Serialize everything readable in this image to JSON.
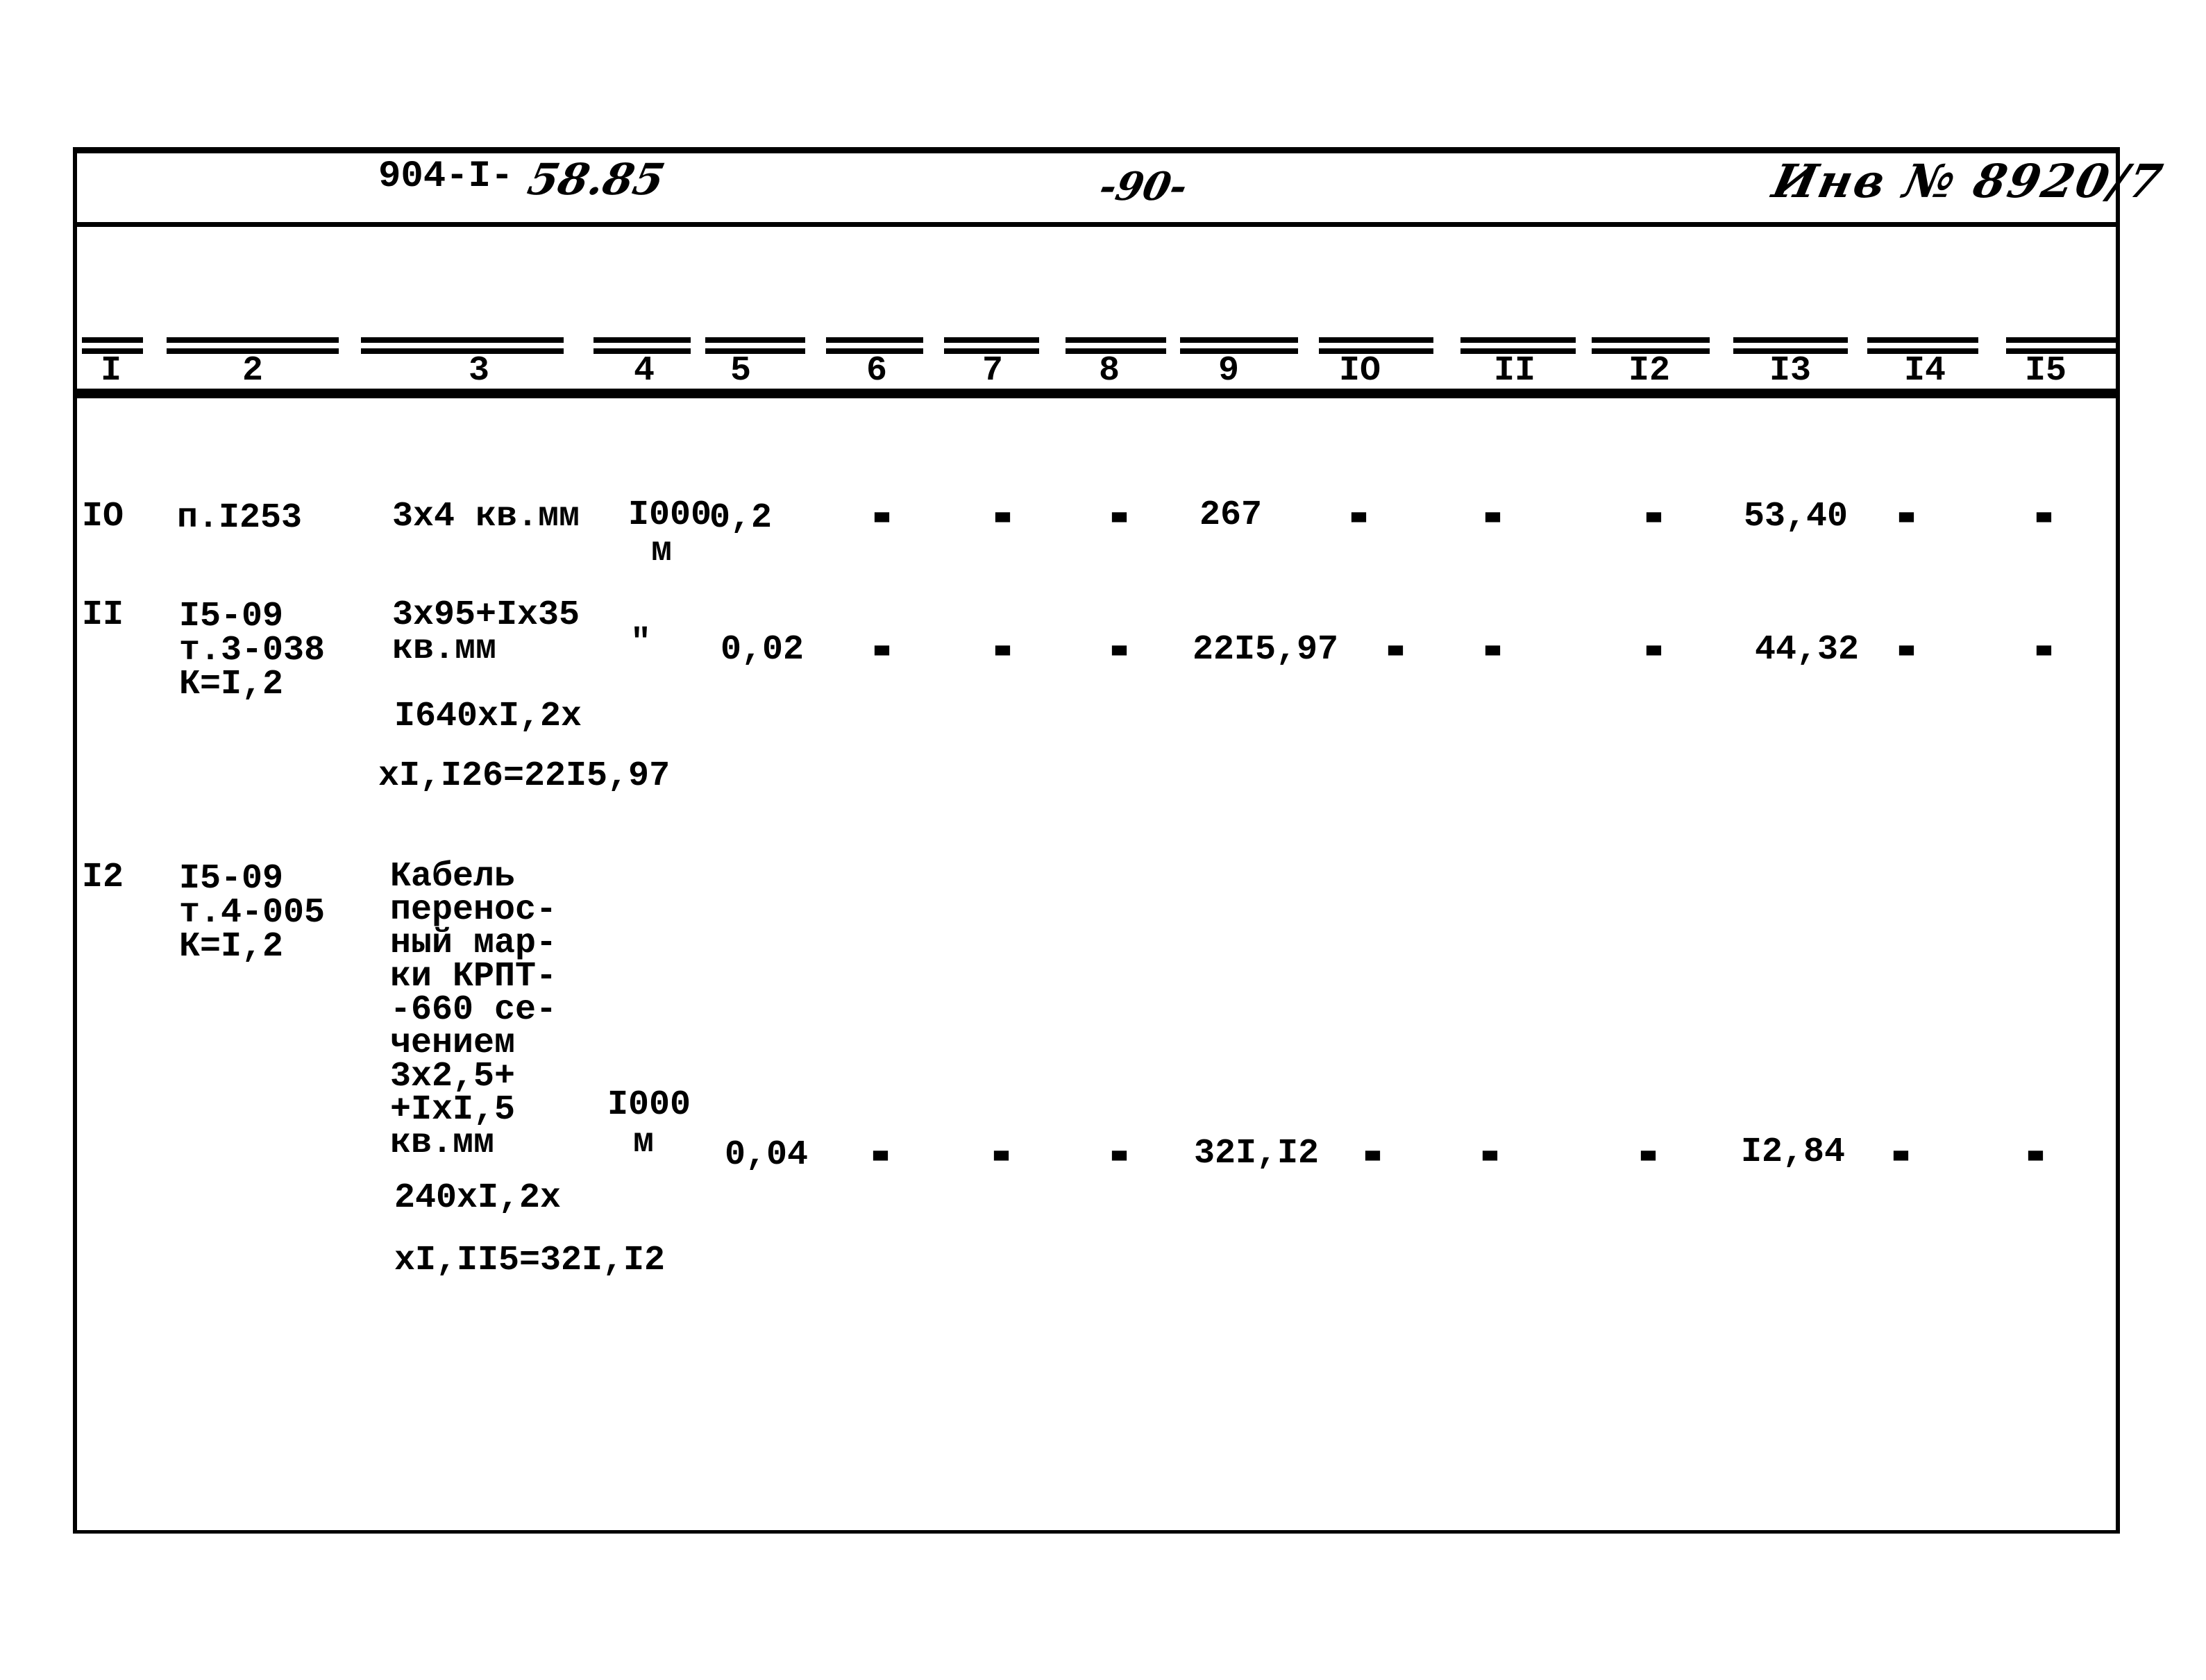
{
  "colors": {
    "paper": "#ffffff",
    "ink": "#000000"
  },
  "page": {
    "doc_code_typed": "904-I-",
    "doc_code_hand": "58.85",
    "page_number": "-90-",
    "inventory_number": "Инв № 8920/7"
  },
  "table": {
    "columns": [
      "I",
      "2",
      "3",
      "4",
      "5",
      "6",
      "7",
      "8",
      "9",
      "IO",
      "II",
      "I2",
      "I3",
      "I4",
      "I5"
    ],
    "rows": [
      {
        "num": "IO",
        "basis": "п.I253",
        "name": "3х4 кв.мм",
        "unit": "I000",
        "unit2": "м",
        "qty": "0,2",
        "c6": "-",
        "c7": "-",
        "c8": "-",
        "c9": "267",
        "c10": "-",
        "c11": "-",
        "c12": "-",
        "c13": "53,40",
        "c14": "-",
        "c15": "-"
      },
      {
        "num": "II",
        "basis": "I5-09\nт.3-038\nК=I,2",
        "name": "3х95+Iх35\nкв.мм",
        "unit": "\"",
        "qty": "0,02",
        "c6": "-",
        "c7": "-",
        "c8": "-",
        "c9": "22I5,97",
        "c10": "-",
        "c11": "-",
        "c12": "-",
        "c13": "44,32",
        "c14": "-",
        "c15": "-",
        "formula1": "I640хI,2х",
        "formula2": "хI,I26=22I5,97"
      },
      {
        "num": "I2",
        "basis": "I5-09\nт.4-005\nК=I,2",
        "name": "Кабель\nперенос-\nный мар-\nки КРПТ-\n-660 се-\nчением\n3х2,5+\n+IхI,5\nкв.мм",
        "unit": "I000",
        "unit2": "м",
        "qty": "0,04",
        "c6": "-",
        "c7": "-",
        "c8": "-",
        "c9": "32I,I2",
        "c10": "-",
        "c11": "-",
        "c12": "-",
        "c13": "I2,84",
        "c14": "-",
        "c15": "-",
        "formula1": "240хI,2х",
        "formula2": "хI,II5=32I,I2"
      }
    ]
  }
}
